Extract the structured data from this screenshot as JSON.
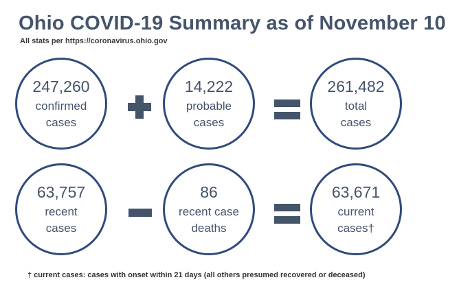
{
  "title": "Ohio COVID-19 Summary as of November 10",
  "source": "All stats per https://coronavirus.ohio.gov",
  "row1": [
    {
      "value": "247,260",
      "label1": "confirmed",
      "label2": "cases"
    },
    {
      "value": "14,222",
      "label1": "probable",
      "label2": "cases"
    },
    {
      "value": "261,482",
      "label1": "total",
      "label2": "cases"
    }
  ],
  "row2": [
    {
      "value": "63,757",
      "label1": "recent",
      "label2": "cases"
    },
    {
      "value": "86",
      "label1": "recent case",
      "label2": "deaths"
    },
    {
      "value": "63,671",
      "label1": "current",
      "label2": "cases†"
    }
  ],
  "operators": {
    "row1_first": "plus",
    "row1_second": "equals",
    "row2_first": "minus",
    "row2_second": "equals"
  },
  "footnote": "† current cases:  cases with onset within 21 days (all others presumed recovered or deceased)",
  "colors": {
    "text": "#44546a",
    "circle_border": "#2f4b7c"
  }
}
